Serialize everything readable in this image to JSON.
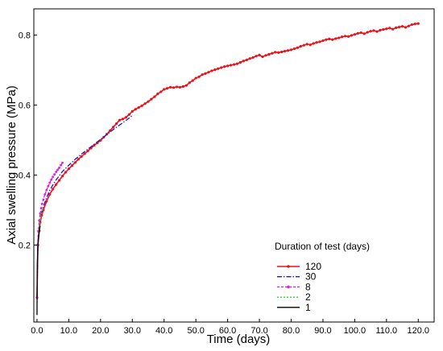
{
  "chart_data": {
    "type": "line",
    "title": "",
    "xlabel": "Time  (days)",
    "ylabel": "Axial  swelling  pressure  (MPa)",
    "xlim": [
      -1,
      125
    ],
    "ylim": [
      -0.02,
      0.875
    ],
    "x_ticks": [
      0,
      10,
      20,
      30,
      40,
      50,
      60,
      70,
      80,
      90,
      100,
      110,
      120
    ],
    "x_tick_labels": [
      "0.0",
      "10.0",
      "20.0",
      "30.0",
      "40.0",
      "50.0",
      "60.0",
      "70.0",
      "80.0",
      "90.0",
      "100.0",
      "110.0",
      "120.0"
    ],
    "y_ticks": [
      0.2,
      0.4,
      0.6,
      0.8
    ],
    "y_tick_labels": [
      "0.2",
      "0.4",
      "0.6",
      "0.8"
    ],
    "grid": false,
    "legend_title": "Duration  of  test  (days)",
    "legend_position": "bottom-right",
    "series": [
      {
        "name": "120",
        "color": "#e8141a",
        "style": "solid-markers",
        "x": [
          0,
          0.3,
          0.7,
          1,
          1.5,
          2,
          3,
          4,
          5,
          6,
          7,
          8,
          9,
          10,
          11,
          12,
          13,
          14,
          15,
          16,
          17,
          18,
          19,
          20,
          21,
          22,
          23,
          24,
          25,
          26,
          27,
          28,
          29,
          30,
          31,
          32,
          33,
          34,
          35,
          36,
          37,
          38,
          39,
          40,
          41,
          42,
          43,
          44,
          45,
          46,
          47,
          48,
          49,
          50,
          51,
          52,
          53,
          54,
          55,
          56,
          57,
          58,
          59,
          60,
          61,
          62,
          63,
          64,
          65,
          66,
          67,
          68,
          69,
          70,
          71,
          72,
          73,
          74,
          75,
          76,
          77,
          78,
          79,
          80,
          81,
          82,
          83,
          84,
          85,
          86,
          87,
          88,
          89,
          90,
          91,
          92,
          93,
          94,
          95,
          96,
          97,
          98,
          99,
          100,
          101,
          102,
          103,
          104,
          105,
          106,
          107,
          108,
          109,
          110,
          111,
          112,
          113,
          114,
          115,
          116,
          117,
          118,
          119,
          120
        ],
        "y": [
          0.05,
          0.2,
          0.24,
          0.265,
          0.285,
          0.3,
          0.325,
          0.345,
          0.36,
          0.373,
          0.385,
          0.397,
          0.408,
          0.418,
          0.427,
          0.436,
          0.445,
          0.453,
          0.461,
          0.469,
          0.477,
          0.485,
          0.492,
          0.499,
          0.508,
          0.517,
          0.527,
          0.537,
          0.547,
          0.557,
          0.56,
          0.565,
          0.573,
          0.582,
          0.588,
          0.593,
          0.598,
          0.604,
          0.61,
          0.617,
          0.624,
          0.632,
          0.638,
          0.645,
          0.648,
          0.651,
          0.65,
          0.652,
          0.651,
          0.653,
          0.656,
          0.664,
          0.67,
          0.677,
          0.681,
          0.687,
          0.69,
          0.694,
          0.698,
          0.701,
          0.704,
          0.707,
          0.71,
          0.712,
          0.714,
          0.716,
          0.718,
          0.722,
          0.726,
          0.729,
          0.733,
          0.736,
          0.74,
          0.743,
          0.738,
          0.742,
          0.745,
          0.748,
          0.751,
          0.75,
          0.752,
          0.754,
          0.756,
          0.758,
          0.761,
          0.764,
          0.768,
          0.771,
          0.774,
          0.772,
          0.776,
          0.779,
          0.781,
          0.784,
          0.787,
          0.789,
          0.787,
          0.79,
          0.792,
          0.795,
          0.797,
          0.796,
          0.799,
          0.802,
          0.805,
          0.807,
          0.804,
          0.808,
          0.811,
          0.813,
          0.81,
          0.814,
          0.816,
          0.818,
          0.82,
          0.817,
          0.821,
          0.823,
          0.825,
          0.822,
          0.826,
          0.83,
          0.832,
          0.833
        ]
      },
      {
        "name": "30",
        "color": "#1a1adf",
        "style": "dash-dot",
        "x": [
          0,
          0.3,
          0.7,
          1,
          1.5,
          2,
          3,
          4,
          5,
          6,
          7,
          8,
          10,
          12,
          14,
          16,
          18,
          20,
          22,
          24,
          26,
          28,
          30
        ],
        "y": [
          0.05,
          0.21,
          0.25,
          0.275,
          0.295,
          0.31,
          0.335,
          0.356,
          0.372,
          0.386,
          0.398,
          0.41,
          0.428,
          0.445,
          0.46,
          0.474,
          0.488,
          0.502,
          0.516,
          0.53,
          0.543,
          0.556,
          0.57
        ]
      },
      {
        "name": "8",
        "color": "#e01ee0",
        "style": "dashed-markers",
        "x": [
          0,
          0.2,
          0.4,
          0.7,
          1,
          1.3,
          1.6,
          2,
          2.5,
          3,
          3.5,
          4,
          4.5,
          5,
          5.5,
          6,
          6.5,
          7,
          7.5,
          8
        ],
        "y": [
          0.05,
          0.2,
          0.24,
          0.27,
          0.29,
          0.305,
          0.318,
          0.33,
          0.345,
          0.357,
          0.368,
          0.378,
          0.387,
          0.395,
          0.402,
          0.409,
          0.415,
          0.421,
          0.428,
          0.435
        ]
      },
      {
        "name": "2",
        "color": "#1fcf1f",
        "style": "dotted",
        "x": [
          0,
          0.1,
          0.25,
          0.5,
          0.75,
          1,
          1.3,
          1.6,
          2
        ],
        "y": [
          0.05,
          0.14,
          0.19,
          0.23,
          0.255,
          0.27,
          0.285,
          0.297,
          0.307
        ]
      },
      {
        "name": "1",
        "color": "#000000",
        "style": "solid",
        "x": [
          0,
          0.05,
          0.1,
          0.2,
          0.3,
          0.5,
          0.7,
          1
        ],
        "y": [
          0.0,
          0.1,
          0.14,
          0.18,
          0.2,
          0.225,
          0.24,
          0.255
        ]
      }
    ]
  }
}
